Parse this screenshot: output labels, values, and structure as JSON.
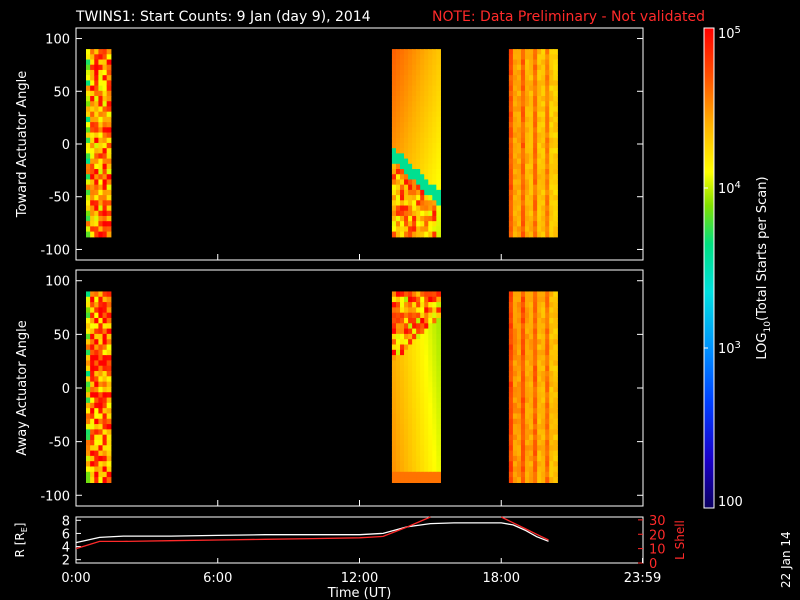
{
  "title": {
    "main": "TWINS1: Start Counts:  9 Jan (day   9), 2014",
    "note": "NOTE: Data Preliminary - Not validated",
    "note_color": "#ff2a2a"
  },
  "side_label": "22 Jan 14",
  "chart_data": [
    {
      "type": "heatmap",
      "panel": "toward",
      "ylabel": "Toward Actuator Angle",
      "ylim": [
        -110,
        110
      ],
      "yticks": [
        100,
        50,
        0,
        -50,
        -100
      ],
      "x_range_hours": [
        0,
        24
      ],
      "data_ylim": [
        -88,
        90
      ],
      "blocks": [
        {
          "t_start": 0.0,
          "t_end": 1.05,
          "log10_level": 4.55,
          "pattern": "striped_noisy"
        },
        {
          "t_start": 12.95,
          "t_end": 15.0,
          "log10_level": 4.35,
          "pattern": "diagonal_gradient"
        },
        {
          "t_start": 17.9,
          "t_end": 19.95,
          "log10_level": 4.45,
          "pattern": "vertical_stripes"
        }
      ]
    },
    {
      "type": "heatmap",
      "panel": "away",
      "ylabel": "Away Actuator Angle",
      "ylim": [
        -110,
        110
      ],
      "yticks": [
        100,
        50,
        0,
        -50,
        -100
      ],
      "x_range_hours": [
        0,
        24
      ],
      "data_ylim": [
        -88,
        90
      ],
      "blocks": [
        {
          "t_start": 0.0,
          "t_end": 1.05,
          "log10_level": 4.6,
          "pattern": "striped_noisy"
        },
        {
          "t_start": 12.95,
          "t_end": 15.0,
          "log10_level": 4.35,
          "pattern": "diagonal_gradient_top"
        },
        {
          "t_start": 17.9,
          "t_end": 19.95,
          "log10_level": 4.5,
          "pattern": "vertical_stripes"
        }
      ]
    },
    {
      "type": "colorbar",
      "label": "LOG10(Total Starts per Scan)",
      "label_prefix": "LOG",
      "label_sub": "10",
      "label_suffix": "(Total Starts per Scan)",
      "range": [
        100,
        100000
      ],
      "ticks": [
        {
          "value": 100,
          "label": "100"
        },
        {
          "value": 1000,
          "label_base": "10",
          "label_exp": "3"
        },
        {
          "value": 10000,
          "label_base": "10",
          "label_exp": "4"
        },
        {
          "value": 100000,
          "label_base": "10",
          "label_exp": "5"
        }
      ]
    },
    {
      "type": "line",
      "panel": "orbit",
      "xlabel": "Time (UT)",
      "x_range_hours": [
        0,
        24
      ],
      "xticks": [
        {
          "value": 0,
          "label": "0:00"
        },
        {
          "value": 6,
          "label": "6:00"
        },
        {
          "value": 12,
          "label": "12:00"
        },
        {
          "value": 18,
          "label": "18:00"
        },
        {
          "value": 23.98,
          "label": "23:59"
        }
      ],
      "left_axis": {
        "label": "R [RE]",
        "label_prefix": "R [R",
        "label_sub": "E",
        "label_suffix": "]",
        "ylim": [
          1.5,
          8.5
        ],
        "ticks": [
          8,
          6,
          4,
          2
        ]
      },
      "right_axis": {
        "label": "L Shell",
        "ylim": [
          0,
          32
        ],
        "ticks": [
          30,
          20,
          10,
          0
        ],
        "color": "#ff2a2a"
      },
      "series": [
        {
          "axis": "left",
          "color": "#ffffff",
          "x": [
            0,
            0.5,
            1,
            2,
            4,
            6,
            8,
            10,
            12,
            13,
            14,
            15,
            16,
            17,
            18,
            18.5,
            19,
            19.5,
            20
          ],
          "y": [
            4.6,
            5.0,
            5.4,
            5.6,
            5.6,
            5.7,
            5.8,
            5.8,
            5.8,
            6.0,
            7.0,
            7.5,
            7.6,
            7.6,
            7.6,
            7.3,
            6.5,
            5.5,
            4.8
          ]
        },
        {
          "axis": "right",
          "color": "#ff2a2a",
          "x": [
            0,
            0.4,
            1,
            2,
            4,
            6,
            8,
            10,
            12,
            13,
            14,
            15
          ],
          "y": [
            10,
            12,
            15,
            15,
            15.5,
            16,
            16.5,
            17,
            17.5,
            18.5,
            25,
            33
          ]
        },
        {
          "axis": "right",
          "color": "#ff2a2a",
          "x": [
            18,
            18.5,
            19,
            19.5,
            20
          ],
          "y": [
            33,
            28,
            24,
            20,
            16
          ]
        }
      ]
    }
  ]
}
